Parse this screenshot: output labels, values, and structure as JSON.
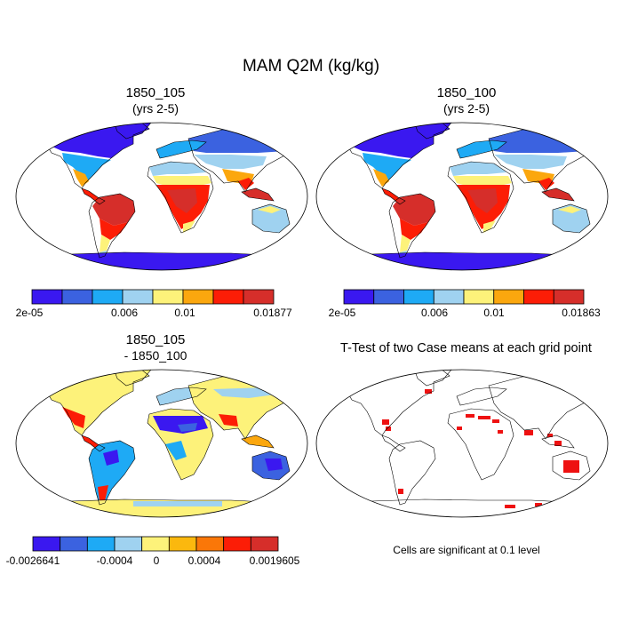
{
  "figure": {
    "title": "MAM Q2M (kg/kg)"
  },
  "panels": [
    {
      "id": "case1",
      "title": "1850_105",
      "subtitle": "(yrs 2-5)",
      "colorbar": {
        "colors": [
          "#3a18f0",
          "#3b62e0",
          "#1eaaf5",
          "#9fd2f0",
          "#fdf27a",
          "#fba70e",
          "#fc1d06",
          "#d62e2a"
        ],
        "tick_labels": [
          "2e-05",
          "0.006",
          "0.01",
          "0.01877"
        ]
      }
    },
    {
      "id": "case2",
      "title": "1850_100",
      "subtitle": "(yrs 2-5)",
      "colorbar": {
        "colors": [
          "#3a18f0",
          "#3b62e0",
          "#1eaaf5",
          "#9fd2f0",
          "#fdf27a",
          "#fba70e",
          "#fc1d06",
          "#d62e2a"
        ],
        "tick_labels": [
          "2e-05",
          "0.006",
          "0.01",
          "0.01863"
        ]
      }
    },
    {
      "id": "diff",
      "title": "1850_105",
      "subtitle": "- 1850_100",
      "colorbar": {
        "colors": [
          "#3a18f0",
          "#3b62e0",
          "#1eaaf5",
          "#9fd2f0",
          "#fdf27a",
          "#fbb80e",
          "#fa7708",
          "#fc1d06",
          "#d62e2a"
        ],
        "tick_labels": [
          "-0.0026641",
          "-0.0004",
          "0",
          "0.0004",
          "0.0019605"
        ]
      }
    },
    {
      "id": "ttest",
      "title": "T-Test of two Case means at each grid point",
      "note": "Cells are significant at 0.1 level",
      "significant_color": "#ee1111"
    }
  ]
}
